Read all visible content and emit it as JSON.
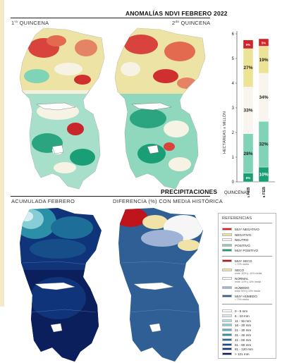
{
  "ndvi": {
    "title": "ANOMALÍAS NDVI FEBRERO 2022",
    "panel_left": {
      "ordinal": "1",
      "ordinal_sup": "ra",
      "label": "QUINCENA"
    },
    "panel_right": {
      "ordinal": "2",
      "ordinal_sup": "da",
      "label": "QUINCENA"
    }
  },
  "precip": {
    "title": "PRECIPITACIONES",
    "panel_left": "ACUMULADA FEBRERO",
    "panel_right": "DIFERENCIA (%) CON MEDIA HISTÓRICA"
  },
  "chart_data": {
    "type": "bar",
    "stacked": true,
    "ylabel": "HECTÁREAS x MILLÓN",
    "xlabel": "QUINCENAS",
    "ylim": [
      0,
      6
    ],
    "yticks": [
      0,
      1,
      2,
      3,
      4,
      5,
      6
    ],
    "categories": [
      "1ra FEB",
      "2da FEB"
    ],
    "series": [
      {
        "name": "MUY POSITIVO",
        "color": "#1a9e75",
        "values": [
          0.35,
          0.6
        ],
        "labels": [
          "6%",
          "10%"
        ]
      },
      {
        "name": "POSITIVO",
        "color": "#7fd3b6",
        "values": [
          1.6,
          1.85
        ],
        "labels": [
          "28%",
          "32%"
        ]
      },
      {
        "name": "NEUTRO",
        "color": "#f7f5ee",
        "values": [
          1.9,
          1.95
        ],
        "labels": [
          "33%",
          "34%"
        ]
      },
      {
        "name": "NEGATIVO",
        "color": "#ece397",
        "values": [
          1.55,
          1.1
        ],
        "labels": [
          "27%",
          "19%"
        ]
      },
      {
        "name": "MUY NEGATIVO",
        "color": "#d2232a",
        "values": [
          0.35,
          0.3
        ],
        "labels": [
          "6%",
          "5%"
        ]
      }
    ]
  },
  "legend": {
    "title": "REFERENCIAS",
    "ndvi_items": [
      {
        "label": "MUY NEGATIVO",
        "color": "#d2232a"
      },
      {
        "label": "NEGATIVO",
        "color": "#ece397"
      },
      {
        "label": "NEUTRO",
        "color": "#f7f5ee"
      },
      {
        "label": "POSITIVO",
        "color": "#7fd3b6"
      },
      {
        "label": "MUY POSITIVO",
        "color": "#1a9e75"
      }
    ],
    "precip_items": [
      {
        "label": "MUY SECO",
        "note": "< 70% media",
        "color": "#c0141c"
      },
      {
        "label": "SECO",
        "note": "entre -30% y -10% media",
        "color": "#f1e3a6"
      },
      {
        "label": "NORMAL",
        "note": "entre -10% y 10% media",
        "color": "#f6f6f6"
      },
      {
        "label": "HÚMEDO",
        "note": "entre 30% y 10% media",
        "color": "#9fb3d6"
      },
      {
        "label": "MUY HÚMEDO",
        "note": "> 70% media",
        "color": "#2f5f95"
      }
    ],
    "mm_items": [
      {
        "label": "0 - 5 mm",
        "color": "#ffffff"
      },
      {
        "label": "6 - 10 mm",
        "color": "#d7eef2"
      },
      {
        "label": "11 - 15 mm",
        "color": "#b3e0e6"
      },
      {
        "label": "16 - 20 mm",
        "color": "#86cdd5"
      },
      {
        "label": "21 - 30 mm",
        "color": "#4fb0be"
      },
      {
        "label": "31 - 40 mm",
        "color": "#2b8fa7"
      },
      {
        "label": "41 - 60 mm",
        "color": "#1d6e99"
      },
      {
        "label": "61 - 80 mm",
        "color": "#164e89"
      },
      {
        "label": "81 - 120 mm",
        "color": "#0f347a"
      },
      {
        "label": "> 121 mm",
        "color": "#0a1f5c"
      }
    ]
  }
}
